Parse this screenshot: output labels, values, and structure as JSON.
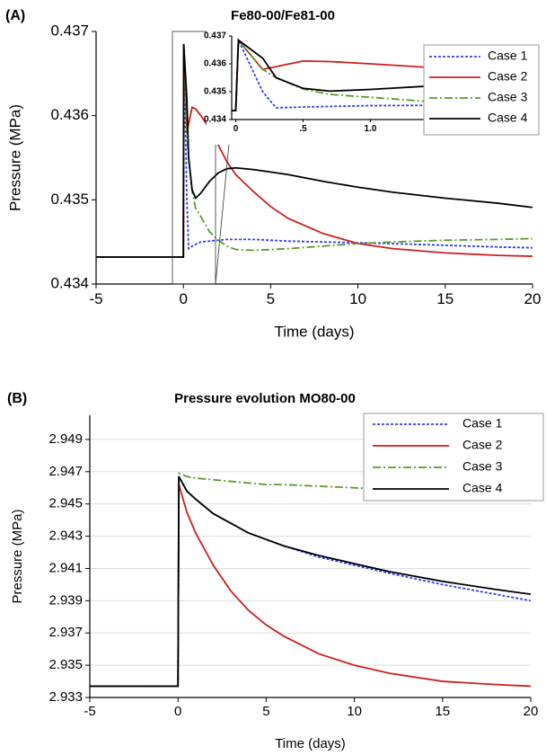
{
  "chart_data": [
    {
      "type": "line",
      "panel_label": "(A)",
      "title": "Fe80-00/Fe81-00",
      "x_label": "Time (days)",
      "y_label": "Pressure (MPa)",
      "x": [
        -5,
        0,
        0.02,
        0.2,
        0.3,
        0.5,
        0.7,
        1,
        1.5,
        2,
        2.5,
        3,
        4,
        5,
        6,
        8,
        10,
        12,
        15,
        18,
        20
      ],
      "series": [
        {
          "name": "Case 1",
          "color": "#2f3ff0",
          "values": [
            0.43432,
            0.43432,
            0.43685,
            0.435,
            0.43442,
            0.43445,
            0.43447,
            0.4345,
            0.43451,
            0.43452,
            0.43453,
            0.43453,
            0.43453,
            0.43452,
            0.43451,
            0.4345,
            0.43449,
            0.43448,
            0.43446,
            0.43444,
            0.43443
          ]
        },
        {
          "name": "Case 2",
          "color": "#cc1f1f",
          "values": [
            0.43432,
            0.43432,
            0.43685,
            0.4358,
            0.4359,
            0.4361,
            0.43608,
            0.436,
            0.43585,
            0.43565,
            0.43545,
            0.4353,
            0.4351,
            0.43492,
            0.43478,
            0.4346,
            0.43448,
            0.43442,
            0.43437,
            0.43434,
            0.43433
          ]
        },
        {
          "name": "Case 3",
          "color": "#5a9a2a",
          "values": [
            0.43432,
            0.43432,
            0.43685,
            0.4358,
            0.4355,
            0.4351,
            0.4349,
            0.4348,
            0.43462,
            0.43452,
            0.43445,
            0.43441,
            0.4344,
            0.43441,
            0.43442,
            0.43445,
            0.43448,
            0.4345,
            0.43452,
            0.43453,
            0.43454
          ]
        },
        {
          "name": "Case 4",
          "color": "#000000",
          "values": [
            0.43432,
            0.43432,
            0.43685,
            0.4362,
            0.4355,
            0.43512,
            0.43502,
            0.43508,
            0.43522,
            0.43532,
            0.43537,
            0.43538,
            0.43536,
            0.43533,
            0.4353,
            0.43522,
            0.43515,
            0.43509,
            0.43502,
            0.43496,
            0.43491
          ]
        }
      ],
      "xlim": [
        -5,
        20
      ],
      "xticks": [
        -5,
        0,
        5,
        10,
        15,
        20
      ],
      "ylim": [
        0.434,
        0.437
      ],
      "yticks": [
        0.434,
        0.435,
        0.436,
        0.437
      ],
      "grid": false,
      "legend": "upper right",
      "inset": {
        "xlim": [
          -0.03,
          1.55
        ],
        "xticks": [
          0,
          {
            "value": 0.5,
            "label": ".5"
          },
          {
            "value": 1,
            "label": "1.0"
          },
          1.5
        ],
        "ylim": [
          0.434,
          0.437
        ],
        "yticks": [
          0.434,
          0.435,
          0.436,
          0.437
        ]
      }
    },
    {
      "type": "line",
      "panel_label": "(B)",
      "title": "Pressure evolution MO80-00",
      "x_label": "Time (days)",
      "y_label": "Pressure (MPa)",
      "x": [
        -5,
        0,
        0.05,
        0.5,
        1,
        2,
        3,
        4,
        5,
        6,
        8,
        10,
        12,
        15,
        18,
        20
      ],
      "series": [
        {
          "name": "Case 1",
          "color": "#2f3ff0",
          "values": [
            2.9337,
            2.9337,
            2.9467,
            2.9458,
            2.9453,
            2.9444,
            2.9438,
            2.9432,
            2.9428,
            2.9424,
            2.9417,
            2.9412,
            2.9407,
            2.94,
            2.9394,
            2.939
          ]
        },
        {
          "name": "Case 2",
          "color": "#cc1f1f",
          "values": [
            2.9337,
            2.9337,
            2.9462,
            2.9445,
            2.9432,
            2.9412,
            2.9396,
            2.9384,
            2.9375,
            2.9368,
            2.9357,
            2.935,
            2.9345,
            2.934,
            2.9338,
            2.9337
          ]
        },
        {
          "name": "Case 3",
          "color": "#5a9a2a",
          "values": [
            2.9337,
            2.9337,
            2.9469,
            2.9467,
            2.9466,
            2.9465,
            2.9464,
            2.9463,
            2.9462,
            2.9462,
            2.9461,
            2.946,
            2.9459,
            2.9458,
            2.9458,
            2.9457
          ]
        },
        {
          "name": "Case 4",
          "color": "#000000",
          "values": [
            2.9337,
            2.9337,
            2.9467,
            2.9458,
            2.9453,
            2.9444,
            2.9438,
            2.9432,
            2.9428,
            2.9424,
            2.9418,
            2.9413,
            2.9408,
            2.9402,
            2.9397,
            2.9394
          ]
        }
      ],
      "xlim": [
        -5,
        20
      ],
      "xticks": [
        -5,
        0,
        5,
        10,
        15,
        20
      ],
      "ylim": [
        2.933,
        2.9505
      ],
      "yticks": [
        2.933,
        2.935,
        2.937,
        2.939,
        2.941,
        2.943,
        2.945,
        2.947,
        2.949
      ],
      "grid": true,
      "legend": "upper right"
    }
  ]
}
